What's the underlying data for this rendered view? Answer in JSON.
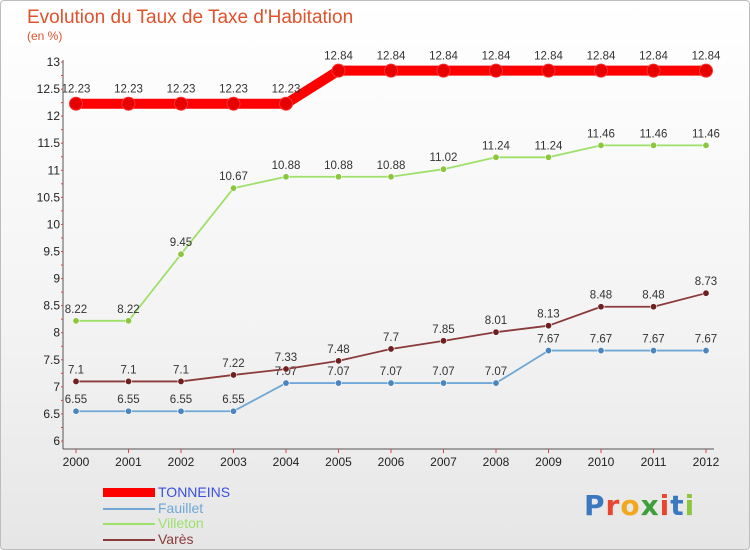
{
  "header": {
    "title": "Evolution du Taux de Taxe d'Habitation",
    "unit": "(en %)"
  },
  "logo": {
    "text": "Proxiti",
    "letters": [
      {
        "ch": "P",
        "color": "#3b78c2"
      },
      {
        "ch": "r",
        "color": "#e8462f"
      },
      {
        "ch": "o",
        "color": "#f2a81d"
      },
      {
        "ch": "x",
        "color": "#3f9e3a"
      },
      {
        "ch": "i",
        "color": "#e8462f"
      },
      {
        "ch": "t",
        "color": "#3b78c2"
      },
      {
        "ch": "i",
        "color": "#8cc63e"
      }
    ]
  },
  "chart_data": {
    "type": "line",
    "title": "Evolution du Taux de Taxe d'Habitation",
    "ylabel": "(en %)",
    "xlabel": "",
    "x": [
      "2000",
      "2001",
      "2002",
      "2003",
      "2004",
      "2005",
      "2006",
      "2007",
      "2008",
      "2009",
      "2010",
      "2011",
      "2012"
    ],
    "ylim": [
      6,
      13
    ],
    "yticks": [
      "6",
      "6.5",
      "7",
      "7.5",
      "8",
      "8.5",
      "9",
      "9.5",
      "10",
      "10.5",
      "11",
      "11.5",
      "12",
      "12.5",
      "13"
    ],
    "grid": false,
    "legend_position": "bottom-left",
    "series": [
      {
        "name": "TONNEINS",
        "color": "#ff0000",
        "point_color": "#e60000",
        "thick": true,
        "values": [
          12.23,
          12.23,
          12.23,
          12.23,
          12.23,
          12.84,
          12.84,
          12.84,
          12.84,
          12.84,
          12.84,
          12.84,
          12.84
        ],
        "labels": [
          "12.23",
          "12.23",
          "12.23",
          "12.23",
          "12.23",
          "12.84",
          "12.84",
          "12.84",
          "12.84",
          "12.84",
          "12.84",
          "12.84",
          "12.84"
        ]
      },
      {
        "name": "Fauillet",
        "color": "#6fa8d6",
        "point_color": "#4a86bd",
        "thick": false,
        "values": [
          6.55,
          6.55,
          6.55,
          6.55,
          7.07,
          7.07,
          7.07,
          7.07,
          7.07,
          7.67,
          7.67,
          7.67,
          7.67
        ],
        "labels": [
          "6.55",
          "6.55",
          "6.55",
          "6.55",
          "7.07",
          "7.07",
          "7.07",
          "7.07",
          "7.07",
          "7.67",
          "7.67",
          "7.67",
          "7.67"
        ]
      },
      {
        "name": "Villeton",
        "color": "#9fe06b",
        "point_color": "#8cc63e",
        "thick": false,
        "values": [
          8.22,
          8.22,
          9.45,
          10.67,
          10.88,
          10.88,
          10.88,
          11.02,
          11.24,
          11.24,
          11.46,
          11.46,
          11.46
        ],
        "labels": [
          "8.22",
          "8.22",
          "9.45",
          "10.67",
          "10.88",
          "10.88",
          "10.88",
          "11.02",
          "11.24",
          "11.24",
          "11.46",
          "11.46",
          "11.46"
        ]
      },
      {
        "name": "Varès",
        "color": "#8b3a3a",
        "point_color": "#6e1f1f",
        "thick": false,
        "values": [
          7.1,
          7.1,
          7.1,
          7.22,
          7.33,
          7.48,
          7.7,
          7.85,
          8.01,
          8.13,
          8.48,
          8.48,
          8.73
        ],
        "labels": [
          "7.1",
          "7.1",
          "7.1",
          "7.22",
          "7.33",
          "7.48",
          "7.7",
          "7.85",
          "8.01",
          "8.13",
          "8.48",
          "8.48",
          "8.73"
        ]
      }
    ]
  }
}
